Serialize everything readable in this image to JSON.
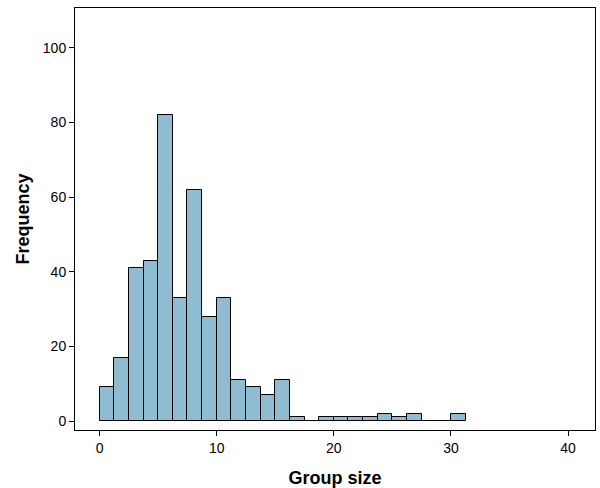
{
  "chart_data": {
    "type": "histogram",
    "x_label": "Group size",
    "y_label": "Frequency",
    "bins": [
      0,
      1.25,
      2.5,
      3.75,
      5,
      6.25,
      7.5,
      8.75,
      10,
      11.25,
      12.5,
      13.75,
      15,
      16.25,
      17.5,
      18.75,
      20,
      21.25,
      22.5,
      23.75,
      25,
      26.25,
      27.5,
      28.75,
      30,
      31.25
    ],
    "values": [
      9,
      17,
      41,
      43,
      82,
      33,
      62,
      28,
      33,
      11,
      9,
      7,
      11,
      1,
      0,
      1,
      1,
      1,
      1,
      2,
      1,
      2,
      0,
      0,
      2
    ],
    "color": "#8fbcd1",
    "xlim": [
      -2.1,
      42.3
    ],
    "xticks": [
      0,
      10,
      20,
      30,
      40
    ],
    "ylim": [
      -2.4,
      110.7
    ],
    "yticks": [
      0,
      20,
      40,
      60,
      80,
      100
    ],
    "grid": false
  }
}
